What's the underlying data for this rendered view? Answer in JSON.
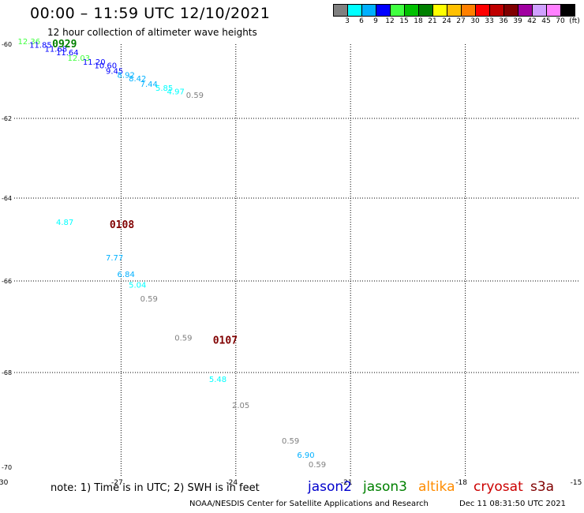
{
  "header": {
    "title": "00:00 – 11:59 UTC 12/10/2021",
    "subtitle": "12 hour collection of altimeter wave heights"
  },
  "colorbar": {
    "colors": [
      "#808080",
      "#00ffff",
      "#00b0ff",
      "#0000ff",
      "#40ff40",
      "#00c000",
      "#008000",
      "#ffff00",
      "#ffc000",
      "#ff8000",
      "#ff0000",
      "#c00000",
      "#800000",
      "#a000a0",
      "#d0a0ff",
      "#ff80ff",
      "#000000"
    ],
    "labels": [
      "3",
      "6",
      "9",
      "12",
      "15",
      "18",
      "21",
      "24",
      "27",
      "30",
      "33",
      "36",
      "39",
      "42",
      "45",
      "70",
      "(ft)"
    ]
  },
  "chart_data": {
    "type": "scatter",
    "title": "00:00 – 11:59 UTC 12/10/2021",
    "subtitle": "12 hour collection of altimeter wave heights",
    "xlim": [
      -30,
      -15
    ],
    "ylim": [
      -70,
      -60
    ],
    "x_ticks": [
      "-30",
      "-27",
      "-24",
      "-21",
      "-18",
      "-15"
    ],
    "y_ticks": [
      "-60",
      "-62",
      "-64",
      "-66",
      "-68",
      "-70"
    ],
    "grid": true,
    "points": [
      {
        "x": -29.7,
        "y": -60.0,
        "label": "12.36",
        "color": "#40ff40"
      },
      {
        "x": -29.4,
        "y": -60.1,
        "label": "11.85",
        "color": "#0000ff"
      },
      {
        "x": -29.0,
        "y": -60.2,
        "label": "11.68",
        "color": "#0000ff"
      },
      {
        "x": -28.7,
        "y": -60.3,
        "label": "11.64",
        "color": "#0000ff"
      },
      {
        "x": -28.4,
        "y": -60.45,
        "label": "12.03",
        "color": "#40ff40"
      },
      {
        "x": -28.0,
        "y": -60.55,
        "label": "11.20",
        "color": "#0000ff"
      },
      {
        "x": -27.7,
        "y": -60.65,
        "label": "10.60",
        "color": "#0000ff"
      },
      {
        "x": -27.4,
        "y": -60.8,
        "label": "9.45",
        "color": "#0000ff"
      },
      {
        "x": -27.1,
        "y": -60.9,
        "label": "8.92",
        "color": "#00b0ff"
      },
      {
        "x": -26.8,
        "y": -61.0,
        "label": "8.42",
        "color": "#00b0ff"
      },
      {
        "x": -26.5,
        "y": -61.15,
        "label": "7.44",
        "color": "#00b0ff"
      },
      {
        "x": -26.1,
        "y": -61.25,
        "label": "5.85",
        "color": "#00ffff"
      },
      {
        "x": -25.8,
        "y": -61.35,
        "label": "4.97",
        "color": "#00ffff"
      },
      {
        "x": -25.3,
        "y": -61.45,
        "label": "0.59",
        "color": "#808080"
      },
      {
        "x": -28.7,
        "y": -64.65,
        "label": "4.87",
        "color": "#00ffff"
      },
      {
        "x": -27.4,
        "y": -65.5,
        "label": "7.77",
        "color": "#00b0ff"
      },
      {
        "x": -27.1,
        "y": -65.9,
        "label": "6.84",
        "color": "#00b0ff"
      },
      {
        "x": -26.8,
        "y": -66.15,
        "label": "5.04",
        "color": "#00ffff"
      },
      {
        "x": -26.5,
        "y": -66.45,
        "label": "0.59",
        "color": "#808080"
      },
      {
        "x": -25.6,
        "y": -67.3,
        "label": "0.59",
        "color": "#808080"
      },
      {
        "x": -24.7,
        "y": -68.2,
        "label": "5.48",
        "color": "#00ffff"
      },
      {
        "x": -24.1,
        "y": -68.75,
        "label": "2.05",
        "color": "#808080"
      },
      {
        "x": -22.8,
        "y": -69.5,
        "label": "0.59",
        "color": "#808080"
      },
      {
        "x": -22.4,
        "y": -69.8,
        "label": "6.90",
        "color": "#00b0ff"
      },
      {
        "x": -22.1,
        "y": -70.0,
        "label": "0.59",
        "color": "#808080"
      }
    ],
    "time_labels": [
      {
        "x": -28.8,
        "y": -60.0,
        "label": "0929",
        "color": "#008000"
      },
      {
        "x": -27.3,
        "y": -64.65,
        "label": "0108",
        "color": "#800000"
      },
      {
        "x": -24.6,
        "y": -67.3,
        "label": "0107",
        "color": "#800000"
      }
    ]
  },
  "footer": {
    "note": "note: 1) Time is in UTC; 2) SWH is in feet",
    "satellites": [
      {
        "name": "jason2",
        "color": "#0000cc"
      },
      {
        "name": "jason3",
        "color": "#008000"
      },
      {
        "name": "altika",
        "color": "#ff8c00"
      },
      {
        "name": "cryosat",
        "color": "#cc0000"
      },
      {
        "name": "s3a",
        "color": "#800000"
      }
    ],
    "credit": "NOAA/NESDIS Center for Satellite Applications and Research",
    "generated": "Dec 11 08:31:50 UTC 2021"
  }
}
